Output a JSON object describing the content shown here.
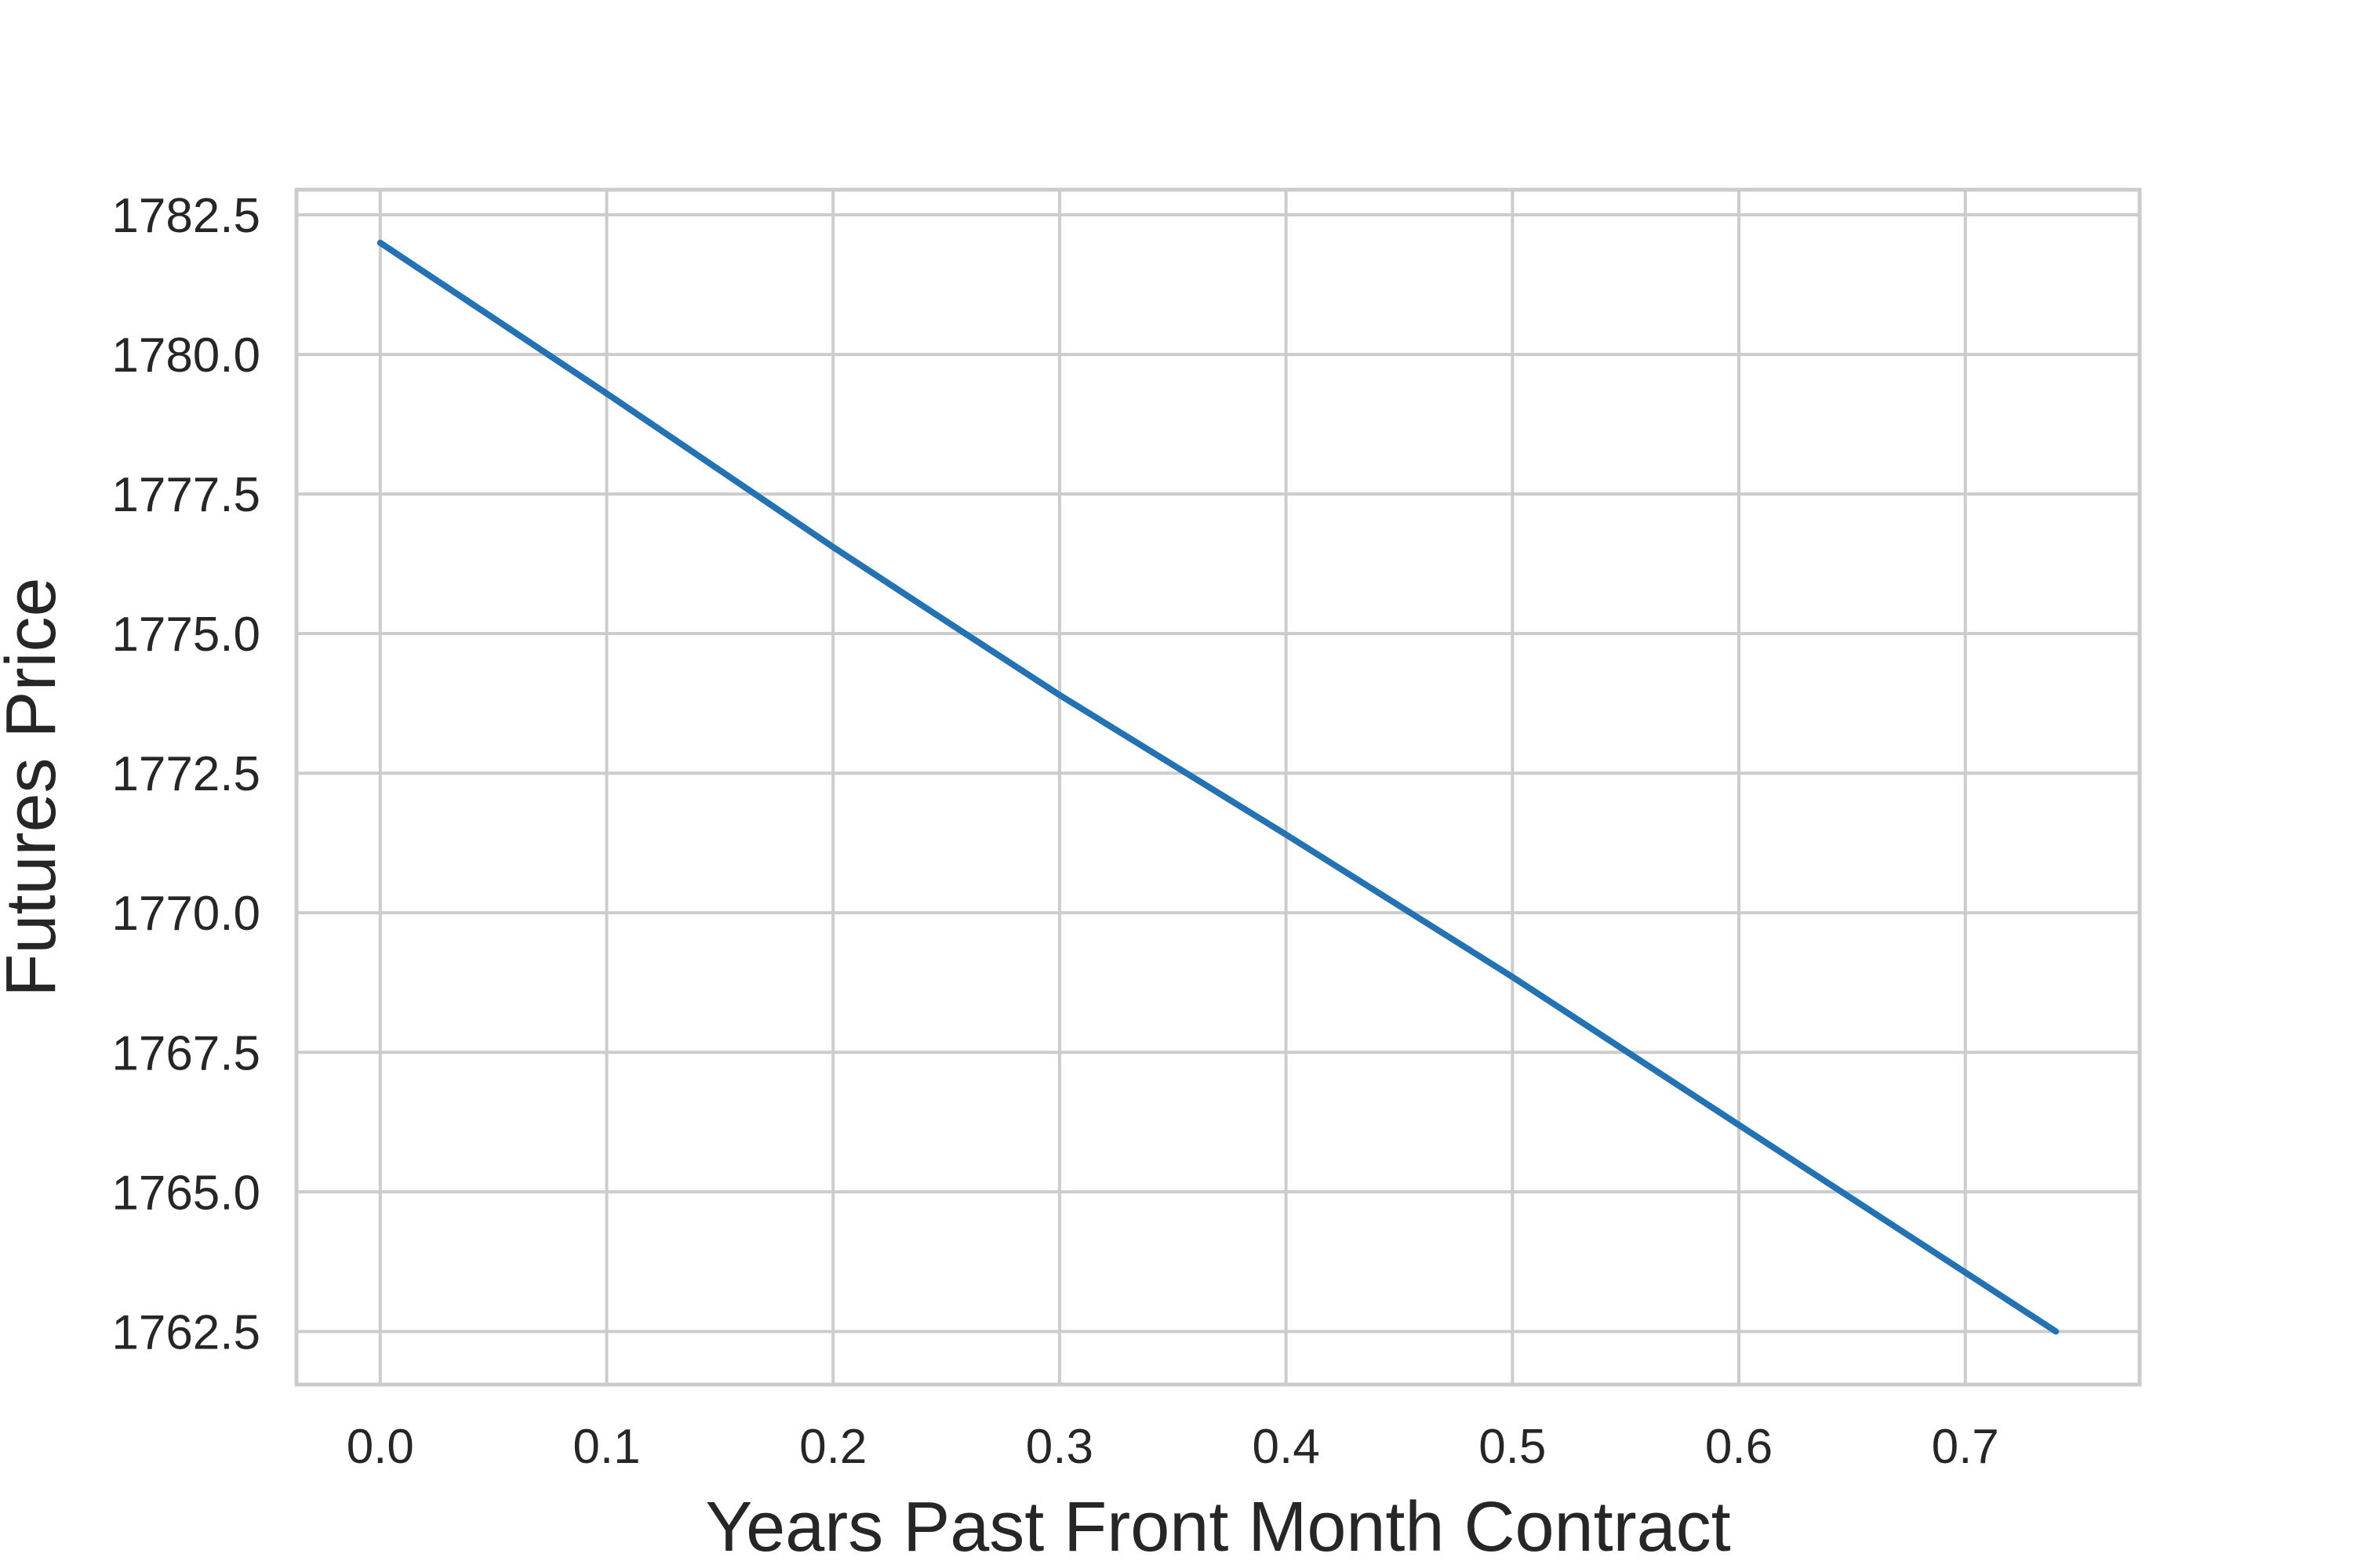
{
  "chart_data": {
    "type": "line",
    "xlabel": "Years Past Front Month Contract",
    "ylabel": "Futures Price",
    "xlim": [
      -0.037,
      0.777
    ],
    "ylim": [
      1761.55,
      1782.95
    ],
    "x_ticks": [
      0.0,
      0.1,
      0.2,
      0.3,
      0.4,
      0.5,
      0.6,
      0.7
    ],
    "x_tick_labels": [
      "0.0",
      "0.1",
      "0.2",
      "0.3",
      "0.4",
      "0.5",
      "0.6",
      "0.7"
    ],
    "y_ticks": [
      1762.5,
      1765.0,
      1767.5,
      1770.0,
      1772.5,
      1775.0,
      1777.5,
      1780.0,
      1782.5
    ],
    "y_tick_labels": [
      "1762.5",
      "1765.0",
      "1767.5",
      "1770.0",
      "1772.5",
      "1775.0",
      "1777.5",
      "1780.0",
      "1782.5"
    ],
    "grid": true,
    "colors": {
      "line": "#2272b4",
      "grid": "#cccccc",
      "text": "#262626"
    },
    "series": [
      {
        "x": [
          0.0,
          0.1,
          0.2,
          0.247,
          0.3,
          0.4,
          0.5,
          0.6,
          0.74
        ],
        "y": [
          1782.0,
          1779.3,
          1776.55,
          1775.3,
          1773.9,
          1771.4,
          1768.85,
          1766.2,
          1762.5
        ]
      }
    ]
  }
}
